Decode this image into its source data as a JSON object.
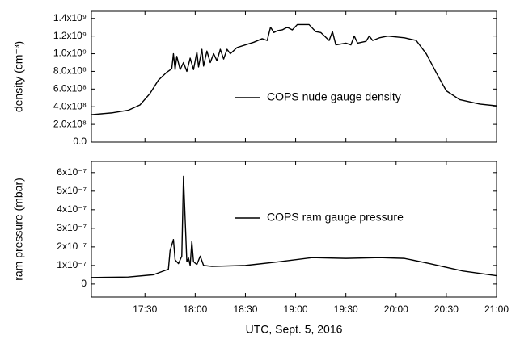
{
  "chart_data": [
    {
      "type": "line",
      "ylabel": "density (cm⁻³)",
      "xlim": [
        "16:58",
        "21:00"
      ],
      "xticks": [
        "17:30",
        "18:00",
        "18:30",
        "19:00",
        "19:30",
        "20:00",
        "20:30",
        "21:00"
      ],
      "ylim": [
        0,
        1480000000
      ],
      "yticks": [
        {
          "value": 0,
          "label": "0.0"
        },
        {
          "value": 200000000,
          "label": "2.0x10⁸"
        },
        {
          "value": 400000000,
          "label": "4.0x10⁸"
        },
        {
          "value": 600000000,
          "label": "6.0x10⁸"
        },
        {
          "value": 800000000,
          "label": "8.0x10⁸"
        },
        {
          "value": 1000000000,
          "label": "1.0x10⁹"
        },
        {
          "value": 1200000000,
          "label": "1.2x10⁹"
        },
        {
          "value": 1400000000,
          "label": "1.4x10⁹"
        }
      ],
      "x": [
        "16:58",
        "17:10",
        "17:20",
        "17:27",
        "17:33",
        "17:38",
        "17:43",
        "17:46",
        "17:47",
        "17:48",
        "17:49",
        "17:51",
        "17:53",
        "17:55",
        "17:57",
        "17:59",
        "18:01",
        "18:02",
        "18:04",
        "18:05",
        "18:07",
        "18:09",
        "18:11",
        "18:13",
        "18:15",
        "18:17",
        "18:19",
        "18:21",
        "18:25",
        "18:30",
        "18:35",
        "18:40",
        "18:43",
        "18:45",
        "18:47",
        "18:49",
        "18:52",
        "18:55",
        "18:58",
        "19:01",
        "19:08",
        "19:12",
        "19:15",
        "19:20",
        "19:22",
        "19:24",
        "19:30",
        "19:33",
        "19:35",
        "19:37",
        "19:42",
        "19:44",
        "19:46",
        "19:50",
        "19:55",
        "20:05",
        "20:12",
        "20:18",
        "20:25",
        "20:30",
        "20:38",
        "20:50",
        "21:00"
      ],
      "series": [
        {
          "name": "COPS nude gauge density",
          "color": "#000000",
          "values": [
            310000000,
            330000000,
            360000000,
            420000000,
            550000000,
            700000000,
            790000000,
            830000000,
            1000000000,
            820000000,
            970000000,
            820000000,
            900000000,
            800000000,
            950000000,
            820000000,
            1020000000,
            850000000,
            1050000000,
            860000000,
            1030000000,
            900000000,
            1000000000,
            920000000,
            1050000000,
            940000000,
            1050000000,
            1000000000,
            1070000000,
            1100000000,
            1130000000,
            1170000000,
            1150000000,
            1300000000,
            1240000000,
            1260000000,
            1270000000,
            1300000000,
            1270000000,
            1330000000,
            1330000000,
            1250000000,
            1240000000,
            1150000000,
            1250000000,
            1100000000,
            1120000000,
            1100000000,
            1200000000,
            1120000000,
            1140000000,
            1200000000,
            1150000000,
            1180000000,
            1200000000,
            1180000000,
            1150000000,
            1000000000,
            750000000,
            580000000,
            480000000,
            430000000,
            410000000
          ]
        }
      ]
    },
    {
      "type": "line",
      "ylabel": "ram pressure (mbar)",
      "xlabel": "UTC, Sept. 5, 2016",
      "xlim": [
        "16:58",
        "21:00"
      ],
      "xticks": [
        "17:30",
        "18:00",
        "18:30",
        "19:00",
        "19:30",
        "20:00",
        "20:30",
        "21:00"
      ],
      "ylim": [
        -7e-08,
        6.6e-07
      ],
      "yticks": [
        0,
        {
          "value": 1e-07,
          "label": "1x10⁻⁷"
        },
        {
          "value": 2e-07,
          "label": "2x10⁻⁷"
        },
        {
          "value": 3e-07,
          "label": "3x10⁻⁷"
        },
        {
          "value": 4e-07,
          "label": "4x10⁻⁷"
        },
        {
          "value": 5e-07,
          "label": "5x10⁻⁷"
        },
        {
          "value": 6e-07,
          "label": "6x10⁻⁷"
        }
      ],
      "x": [
        "16:58",
        "17:20",
        "17:35",
        "17:44",
        "17:45",
        "17:47",
        "17:48",
        "17:50",
        "17:52",
        "17:53",
        "17:54",
        "17:55",
        "17:56",
        "17:57",
        "17:58",
        "17:59",
        "18:01",
        "18:03",
        "18:05",
        "18:10",
        "18:30",
        "18:50",
        "19:10",
        "19:30",
        "19:50",
        "20:05",
        "20:20",
        "20:40",
        "21:00"
      ],
      "series": [
        {
          "name": "COPS ram gauge pressure",
          "color": "#000000",
          "values": [
            3.5e-08,
            3.8e-08,
            5e-08,
            8e-08,
            1.8e-07,
            2.4e-07,
            1.3e-07,
            1.1e-07,
            1.5e-07,
            5.8e-07,
            3.5e-07,
            1.2e-07,
            1.4e-07,
            1e-07,
            2.3e-07,
            1.2e-07,
            1.05e-07,
            1.5e-07,
            1e-07,
            9.5e-08,
            1e-07,
            1.2e-07,
            1.42e-07,
            1.38e-07,
            1.42e-07,
            1.38e-07,
            1.1e-07,
            7e-08,
            4.5e-08
          ]
        }
      ]
    }
  ]
}
